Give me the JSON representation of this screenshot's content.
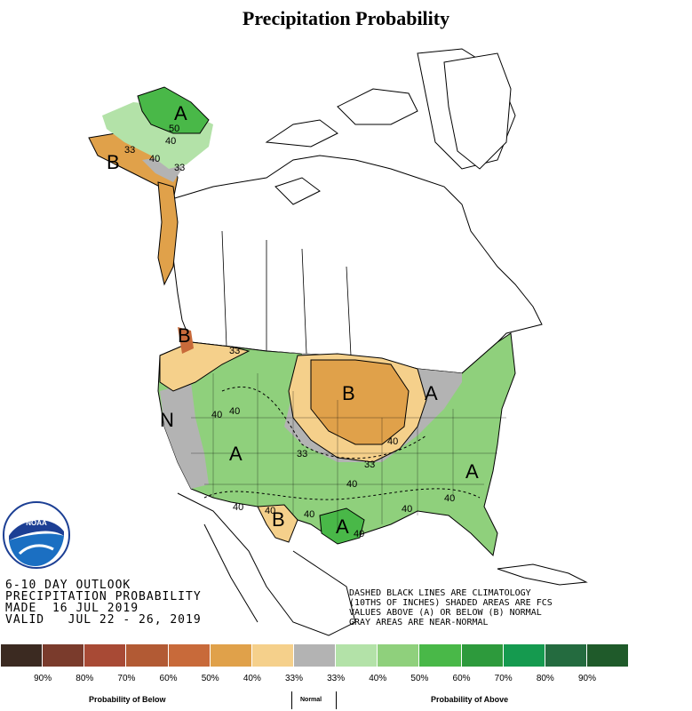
{
  "title": "Precipitation Probability",
  "outlook": {
    "line1": "6-10 DAY OUTLOOK",
    "line2": "PRECIPITATION PROBABILITY",
    "line3": "MADE  16 JUL 2019",
    "line4": "VALID   JUL 22 - 26, 2019"
  },
  "note": {
    "line1": "DASHED BLACK LINES ARE CLIMATOLOGY",
    "line2": "(10THS OF INCHES) SHADED AREAS ARE FCS",
    "line3": "VALUES ABOVE (A) OR BELOW (B) NORMAL",
    "line4": "GRAY AREAS ARE NEAR-NORMAL"
  },
  "logo": {
    "text": "NOAA",
    "icon": "noaa-logo-icon"
  },
  "region_letters": {
    "alaska_above": "A",
    "alaska_below": "B",
    "northwest_below": "B",
    "near_normal": "N",
    "southwest_above": "A",
    "midwest_below": "B",
    "great_lakes_above": "A",
    "southeast_above": "A",
    "texas_below": "B",
    "gulf_above": "A"
  },
  "contour_labels": {
    "ak_50": "50",
    "ak_40": "40",
    "ak_33a": "33",
    "ak_33b": "33",
    "ak_40b": "40",
    "nw_33": "33",
    "w_40": "40",
    "w_40b": "40",
    "c_33": "33",
    "c_33b": "33",
    "c_40": "40",
    "c_40b": "40",
    "se_40": "40",
    "se_40b": "40",
    "tx_40": "40",
    "tx_40b": "40",
    "tx_40c": "40",
    "sw_40": "40"
  },
  "scale": {
    "colors": [
      "#3b2a21",
      "#7a3b2c",
      "#a84a35",
      "#b25a34",
      "#c86a3a",
      "#e0a14a",
      "#f5d08b",
      "#b3b3b3",
      "#b3e2a8",
      "#8fd07c",
      "#49b848",
      "#2d9a3c",
      "#159a4f",
      "#246b3f",
      "#1f5a2a"
    ],
    "labels": [
      "90%",
      "80%",
      "70%",
      "60%",
      "50%",
      "40%",
      "33%",
      "33%",
      "40%",
      "50%",
      "60%",
      "70%",
      "80%",
      "90%"
    ]
  },
  "categories": {
    "below": "Probability of Below",
    "normal": "Normal",
    "above": "Probability of Above"
  }
}
